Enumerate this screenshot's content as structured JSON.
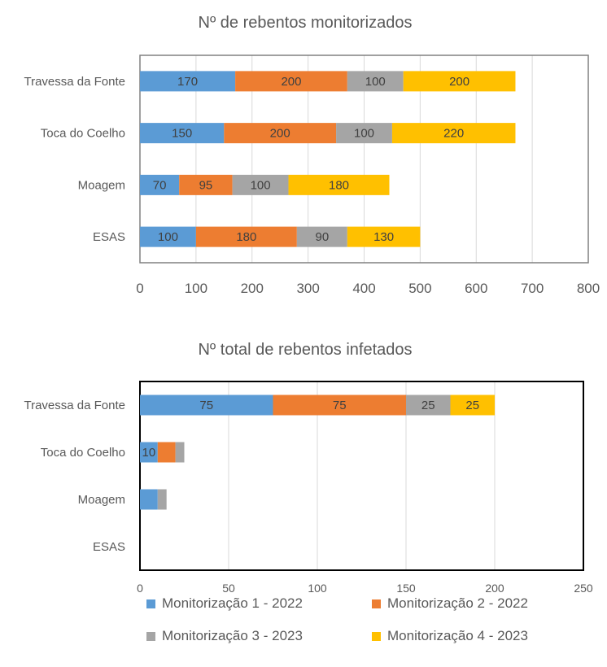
{
  "chart_data": [
    {
      "type": "bar",
      "orientation": "horizontal",
      "stacked": true,
      "title": "Nº de rebentos monitorizados",
      "categories": [
        "ESAS",
        "Moagem",
        "Toca do Coelho",
        "Travessa da Fonte"
      ],
      "series": [
        {
          "name": "Monitorização 1 - 2022",
          "color": "#5B9BD5",
          "values": [
            100,
            70,
            150,
            170
          ]
        },
        {
          "name": "Monitorização 2 - 2022",
          "color": "#ED7D31",
          "values": [
            180,
            95,
            200,
            200
          ]
        },
        {
          "name": "Monitorização 3 - 2023",
          "color": "#A5A5A5",
          "values": [
            90,
            100,
            100,
            100
          ]
        },
        {
          "name": "Monitorização 4 - 2023",
          "color": "#FFC000",
          "values": [
            130,
            180,
            220,
            200
          ]
        }
      ],
      "xlim": [
        0,
        800
      ],
      "xticks": [
        "0",
        "100",
        "200",
        "300",
        "400",
        "500",
        "600",
        "700",
        "800"
      ],
      "grid": true,
      "data_labels": true,
      "border_color": "#808080"
    },
    {
      "type": "bar",
      "orientation": "horizontal",
      "stacked": true,
      "title": "Nº total de rebentos infetados",
      "categories": [
        "ESAS",
        "Moagem",
        "Toca do Coelho",
        "Travessa da Fonte"
      ],
      "series": [
        {
          "name": "Monitorização 1 - 2022",
          "color": "#5B9BD5",
          "values": [
            0,
            10,
            10,
            75
          ]
        },
        {
          "name": "Monitorização 2 - 2022",
          "color": "#ED7D31",
          "values": [
            0,
            0,
            10,
            75
          ]
        },
        {
          "name": "Monitorização 3 - 2023",
          "color": "#A5A5A5",
          "values": [
            0,
            5,
            5,
            25
          ]
        },
        {
          "name": "Monitorização 4 - 2023",
          "color": "#FFC000",
          "values": [
            0,
            0,
            0,
            25
          ]
        }
      ],
      "labels": [
        [
          "",
          "",
          "",
          ""
        ],
        [
          "",
          "",
          "",
          ""
        ],
        [
          "10",
          "",
          "",
          ""
        ],
        [
          "75",
          "75",
          "25",
          "25"
        ]
      ],
      "xlim": [
        0,
        250
      ],
      "xticks": [
        "0",
        "50",
        "100",
        "150",
        "200",
        "250"
      ],
      "grid": true,
      "data_labels": true,
      "border_color": "#000000"
    }
  ],
  "legend": [
    {
      "label": "Monitorização 1 - 2022",
      "color": "#5B9BD5"
    },
    {
      "label": "Monitorização 2 - 2022",
      "color": "#ED7D31"
    },
    {
      "label": "Monitorização 3 - 2023",
      "color": "#A5A5A5"
    },
    {
      "label": "Monitorização 4 - 2023",
      "color": "#FFC000"
    }
  ]
}
